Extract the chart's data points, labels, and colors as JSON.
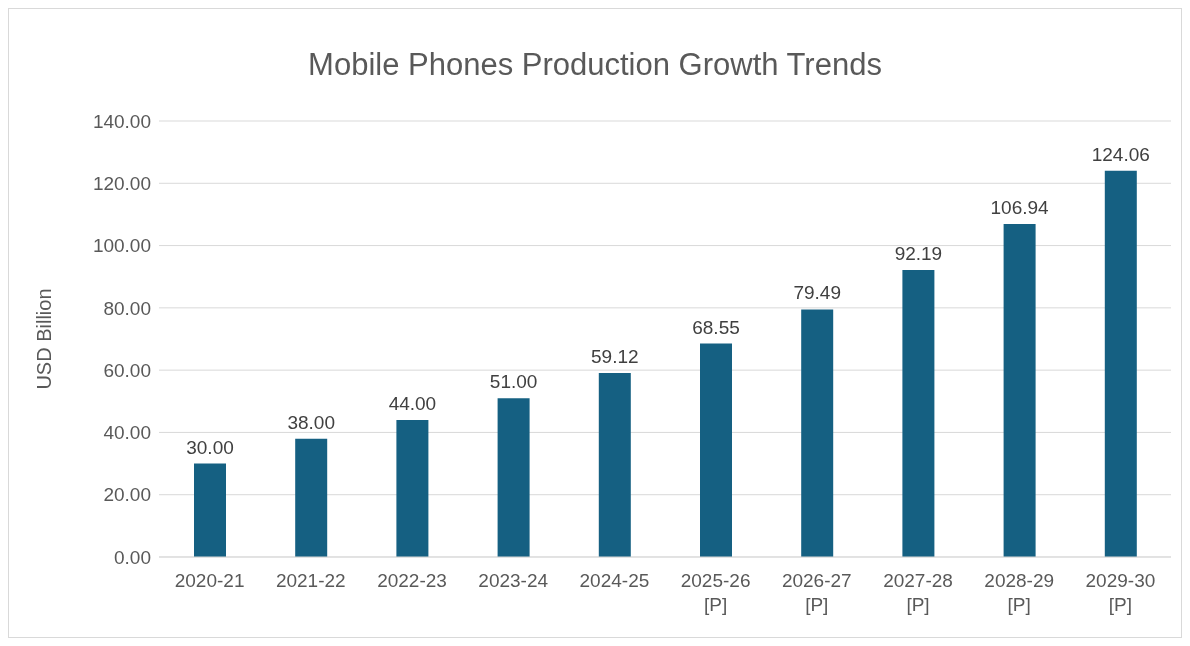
{
  "chart_data": {
    "type": "bar",
    "title": "Mobile Phones Production Growth Trends",
    "ylabel": "USD Billion",
    "categories": [
      "2020-21",
      "2021-22",
      "2022-23",
      "2023-24",
      "2024-25",
      "2025-26 [P]",
      "2026-27 [P]",
      "2027-28 [P]",
      "2028-29 [P]",
      "2029-30 [P]"
    ],
    "values": [
      30.0,
      38.0,
      44.0,
      51.0,
      59.12,
      68.55,
      79.49,
      92.19,
      106.94,
      124.06
    ],
    "value_labels": [
      "30.00",
      "38.00",
      "44.00",
      "51.00",
      "59.12",
      "68.55",
      "79.49",
      "92.19",
      "106.94",
      "124.06"
    ],
    "color": "#156082",
    "ylim": [
      0,
      140
    ],
    "yticks": [
      {
        "value": 0,
        "label": "0.00"
      },
      {
        "value": 20,
        "label": "20.00"
      },
      {
        "value": 40,
        "label": "40.00"
      },
      {
        "value": 60,
        "label": "60.00"
      },
      {
        "value": 80,
        "label": "80.00"
      },
      {
        "value": 100,
        "label": "100.00"
      },
      {
        "value": 120,
        "label": "120.00"
      },
      {
        "value": 140,
        "label": "140.00"
      }
    ],
    "grid": "y",
    "legend": false
  }
}
